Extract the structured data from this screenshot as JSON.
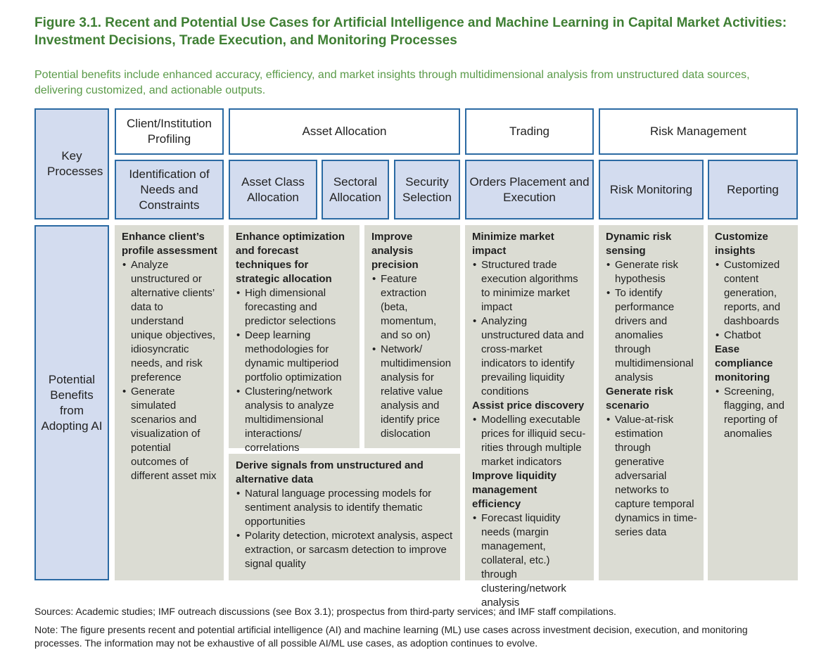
{
  "figure": {
    "title": "Figure 3.1. Recent and Potential Use Cases for Artificial Intelligence and Machine Learning in Capital Market Activities: Investment Decisions, Trade Execution, and Monitoring Processes",
    "subtitle": "Potential benefits include enhanced accuracy, efficiency, and market insights through multidimensional analysis from unstructured data sources, delivering customized, and actionable outputs."
  },
  "row_labels": {
    "key_processes": "Key Processes",
    "benefits": "Potential Benefits from Adopting AI"
  },
  "categories": {
    "client": "Client/Institution Profiling",
    "asset": "Asset Allocation",
    "trading": "Trading",
    "risk": "Risk Management"
  },
  "processes": {
    "needs": "Identification of Needs and Constraints",
    "asset_class": "Asset Class Allocation",
    "sectoral": "Sectoral Allocation",
    "security": "Security Selection",
    "orders": "Orders Placement and Execution",
    "risk_monitoring": "Risk Monitoring",
    "reporting": "Reporting"
  },
  "benefits": {
    "client": {
      "sections": [
        {
          "heading": "Enhance client’s profile assessment",
          "bullets": [
            "Analyze unstructured or alternative clients’ data to understand unique objectives, idiosyncratic needs, and risk preference",
            "Generate simulated scenarios and visualization of potential outcomes of different asset mix"
          ]
        }
      ]
    },
    "optimization": {
      "sections": [
        {
          "heading": "Enhance optimization and forecast techniques for strategic allocation",
          "bullets": [
            "High dimensional forecasting and predictor selections",
            "Deep learning methodologies for dynamic multiperiod portfolio optimization",
            "Clustering/network analysis to analyze multidimensional interactions/ correlations"
          ]
        }
      ]
    },
    "analysis": {
      "sections": [
        {
          "heading": "Improve analysis precision",
          "bullets": [
            "Feature extraction (beta, momentum, and so on)",
            "Network/ multidimension analysis for relative value analysis and identify price dislocation"
          ]
        }
      ]
    },
    "signals": {
      "sections": [
        {
          "heading": "Derive signals from unstructured and alternative data",
          "bullets": [
            "Natural language processing models for sentiment analysis to identify thematic opportunities",
            "Polarity detection, microtext analysis, aspect extraction, or sarcasm detection to improve signal quality"
          ]
        }
      ]
    },
    "trading": {
      "sections": [
        {
          "heading": "Minimize market impact",
          "bullets": [
            "Structured trade execution algorithms to minimize market impact",
            "Analyzing unstructured data and cross-market indicators to identify prevailing liquidity conditions"
          ]
        },
        {
          "heading": "Assist price discovery",
          "bullets": [
            "Modelling executable prices for illiquid secu- rities through multiple market indicators"
          ]
        },
        {
          "heading": "Improve liquidity management efficiency",
          "bullets": [
            "Forecast liquidity needs (margin management, collateral, etc.) through clustering/network analysis"
          ]
        }
      ]
    },
    "risk": {
      "sections": [
        {
          "heading": "Dynamic risk sensing",
          "bullets": [
            "Generate risk hypothesis",
            "To identify performance drivers and anomalies through multidimensional analysis"
          ]
        },
        {
          "heading": "Generate risk scenario",
          "bullets": [
            "Value-at-risk estimation through generative adversarial networks to capture temporal dynamics in time-series data"
          ]
        }
      ]
    },
    "reporting": {
      "sections": [
        {
          "heading": "Customize insights",
          "bullets": [
            "Customized content generation, reports, and dashboards",
            "Chatbot"
          ]
        },
        {
          "heading": "Ease compliance monitoring",
          "bullets": [
            "Screening, flagging, and reporting of anomalies"
          ]
        }
      ]
    }
  },
  "footer": {
    "sources": "Sources: Academic studies; IMF outreach discussions (see Box 3.1); prospectus from third-party services; and IMF staff compilations.",
    "note": "Note: The figure presents recent and potential artificial intelligence (AI) and machine learning (ML) use cases across investment decision, execution, and monitoring processes. The information may not be exhaustive of all possible AI/ML use cases, as adoption continues to evolve."
  }
}
